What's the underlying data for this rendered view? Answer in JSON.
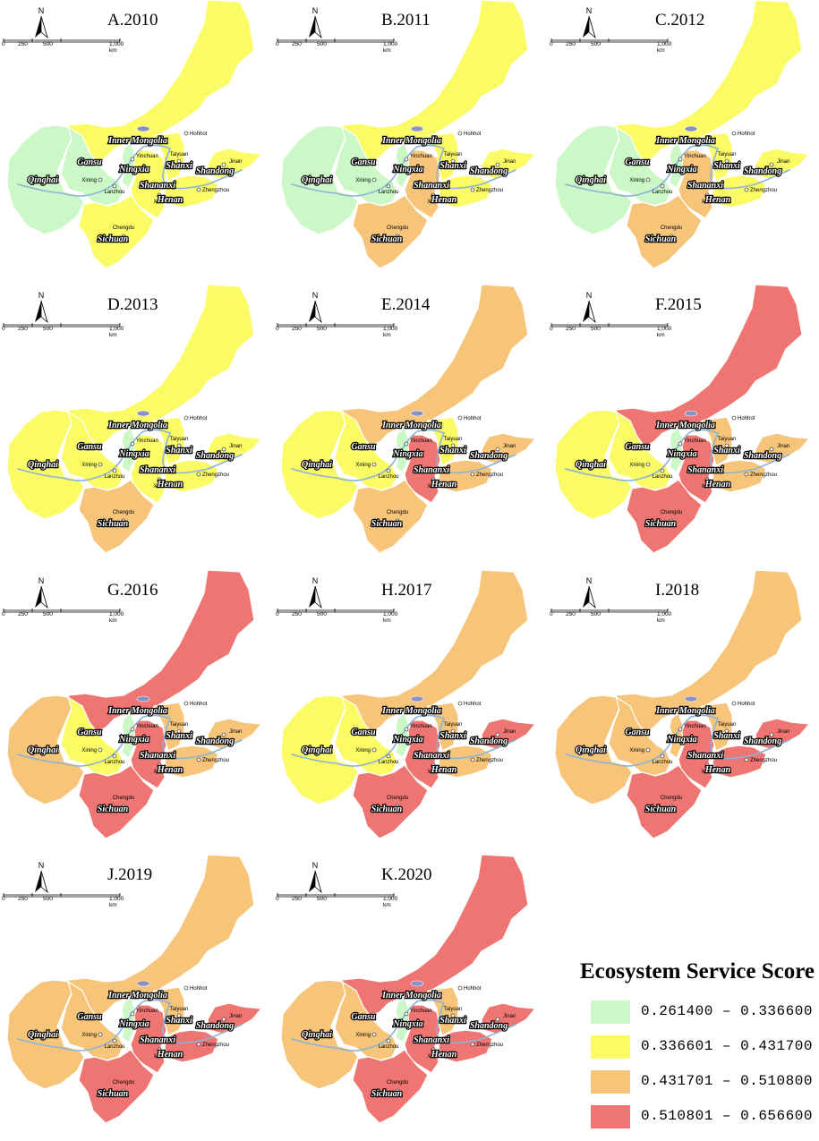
{
  "palette": {
    "green": "#ccf7c6",
    "yellow": "#fbfb66",
    "orange": "#f7c57a",
    "red": "#ee7572",
    "river": "#8ab4d6",
    "lake": "#8b8fc4"
  },
  "north_label": "N",
  "scale": {
    "ticks": [
      "0",
      "250",
      "500",
      "1,000 km"
    ]
  },
  "panels": [
    {
      "title": "A.2010",
      "colors": {
        "im": "yellow",
        "gs": "green",
        "qh": "green",
        "nx": "green",
        "sx": "yellow",
        "sn": "yellow",
        "sd": "yellow",
        "hn": "yellow",
        "sc": "yellow"
      }
    },
    {
      "title": "B.2011",
      "colors": {
        "im": "yellow",
        "gs": "green",
        "qh": "green",
        "nx": "green",
        "sx": "yellow",
        "sn": "orange",
        "sd": "yellow",
        "hn": "yellow",
        "sc": "orange"
      }
    },
    {
      "title": "C.2012",
      "colors": {
        "im": "yellow",
        "gs": "green",
        "qh": "green",
        "nx": "green",
        "sx": "yellow",
        "sn": "orange",
        "sd": "yellow",
        "hn": "yellow",
        "sc": "orange"
      }
    },
    {
      "title": "D.2013",
      "colors": {
        "im": "yellow",
        "gs": "yellow",
        "qh": "yellow",
        "nx": "green",
        "sx": "yellow",
        "sn": "yellow",
        "sd": "yellow",
        "hn": "yellow",
        "sc": "orange"
      }
    },
    {
      "title": "E.2014",
      "colors": {
        "im": "orange",
        "gs": "yellow",
        "qh": "yellow",
        "nx": "green",
        "sx": "yellow",
        "sn": "red",
        "sd": "orange",
        "hn": "orange",
        "sc": "orange"
      }
    },
    {
      "title": "F.2015",
      "colors": {
        "im": "red",
        "gs": "yellow",
        "qh": "yellow",
        "nx": "green",
        "sx": "orange",
        "sn": "red",
        "sd": "orange",
        "hn": "orange",
        "sc": "red"
      }
    },
    {
      "title": "G.2016",
      "colors": {
        "im": "red",
        "gs": "yellow",
        "qh": "orange",
        "nx": "green",
        "sx": "orange",
        "sn": "red",
        "sd": "orange",
        "hn": "orange",
        "sc": "red"
      }
    },
    {
      "title": "H.2017",
      "colors": {
        "im": "orange",
        "gs": "yellow",
        "qh": "yellow",
        "nx": "green",
        "sx": "orange",
        "sn": "red",
        "sd": "red",
        "hn": "orange",
        "sc": "red"
      }
    },
    {
      "title": "I.2018",
      "colors": {
        "im": "orange",
        "gs": "orange",
        "qh": "orange",
        "nx": "orange",
        "sx": "orange",
        "sn": "red",
        "sd": "red",
        "hn": "red",
        "sc": "red"
      }
    },
    {
      "title": "J.2019",
      "colors": {
        "im": "orange",
        "gs": "orange",
        "qh": "orange",
        "nx": "green",
        "sx": "orange",
        "sn": "red",
        "sd": "red",
        "hn": "red",
        "sc": "red"
      }
    },
    {
      "title": "K.2020",
      "colors": {
        "im": "red",
        "gs": "orange",
        "qh": "orange",
        "nx": "green",
        "sx": "orange",
        "sn": "red",
        "sd": "red",
        "hn": "red",
        "sc": "red"
      }
    }
  ],
  "provinces": {
    "im": "Inner Mongolia",
    "gs": "Gansu",
    "qh": "Qinghai",
    "nx": "Ningxia",
    "sx": "Shanxi",
    "sn": "Shananxi",
    "sd": "Shandong",
    "hn": "Henan",
    "sc": "Sichuan"
  },
  "cities": {
    "hohhot": "Hohhot",
    "yinchuan": "Yinchuan",
    "taiyuan": "Taiyuan",
    "jinan": "Jinan",
    "xining": "Xining",
    "lanzhou": "Lanzhou",
    "zhengzhou": "Zhengzhou",
    "xian": "Xi'an",
    "chengdu": "Chengdu"
  },
  "legend": {
    "title": "Ecosystem Service Score",
    "items": [
      {
        "label": "0.261400 – 0.336600",
        "color": "green"
      },
      {
        "label": "0.336601 – 0.431700",
        "color": "yellow"
      },
      {
        "label": "0.431701 – 0.510800",
        "color": "orange"
      },
      {
        "label": "0.510801 – 0.656600",
        "color": "red"
      }
    ]
  }
}
